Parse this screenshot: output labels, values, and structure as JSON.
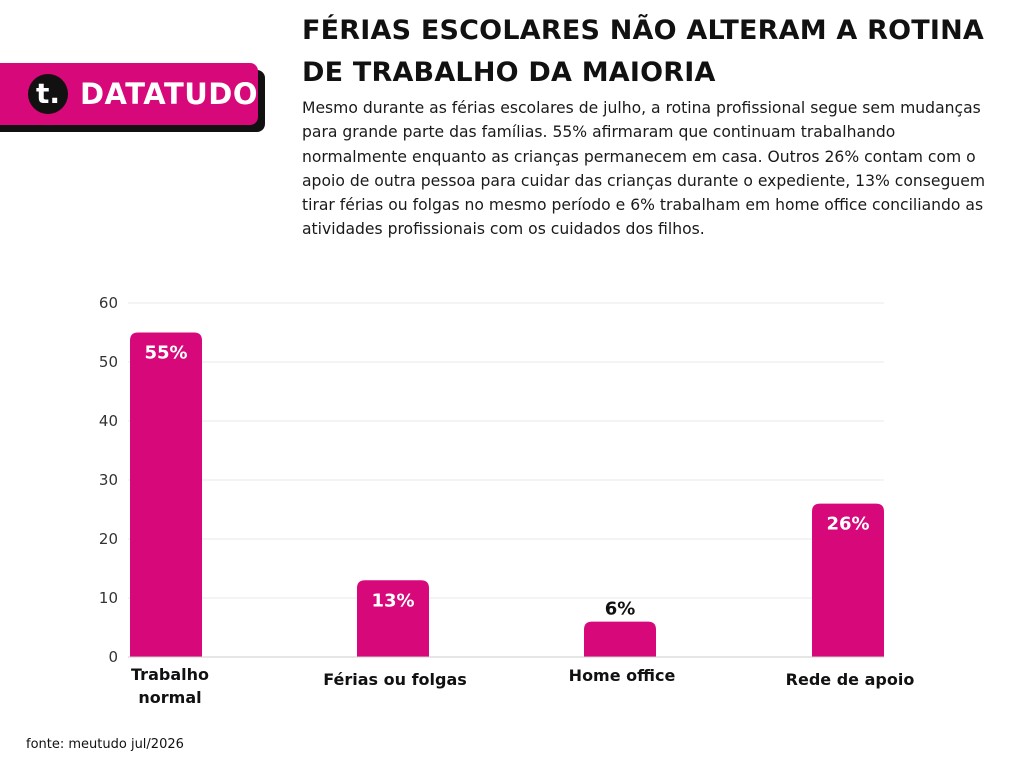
{
  "brand": {
    "logo_mark": "t.",
    "name": "DATATUDO",
    "color": "#d6087a"
  },
  "header": {
    "title": "FÉRIAS ESCOLARES NÃO ALTERAM A ROTINA DE TRABALHO DA MAIORIA",
    "description": "Mesmo durante as férias escolares de julho, a rotina profissional segue sem mudanças para grande parte das famílias. 55% afirmaram que continuam trabalhando normalmente enquanto as crianças permanecem em casa. Outros 26% contam com o apoio de outra pessoa para cuidar das crianças durante o expediente, 13% conseguem tirar férias ou folgas no mesmo período e 6% trabalham em home office conciliando as atividades profissionais com os cuidados dos filhos."
  },
  "chart_data": {
    "type": "bar",
    "categories": [
      "Trabalho normal",
      "Férias ou folgas",
      "Home office",
      "Rede de apoio"
    ],
    "values": [
      55,
      13,
      6,
      26
    ],
    "data_labels": [
      "55%",
      "13%",
      "6%",
      "26%"
    ],
    "ylim": [
      0,
      60
    ],
    "yticks": [
      0,
      10,
      20,
      30,
      40,
      50,
      60
    ],
    "grid": true,
    "bar_color": "#d6087a",
    "title": "",
    "xlabel": "",
    "ylabel": ""
  },
  "footer": {
    "source": "fonte: meutudo jul/2026"
  }
}
